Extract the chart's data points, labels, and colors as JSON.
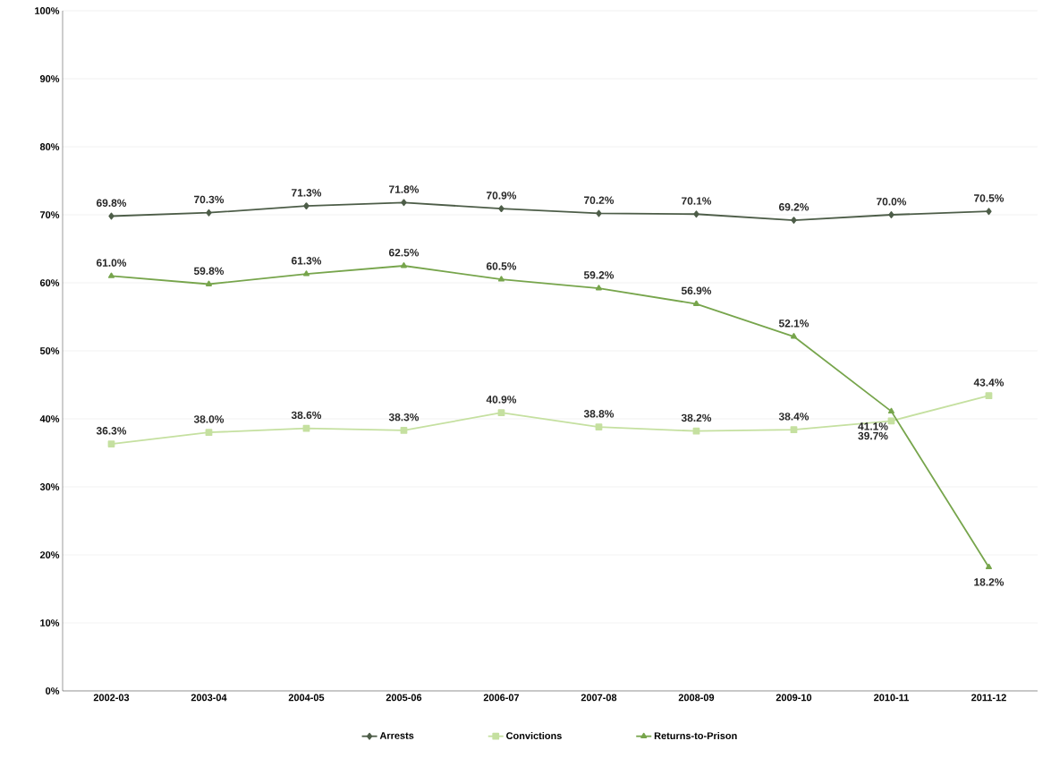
{
  "chart_data": {
    "type": "line",
    "categories": [
      "2002-03",
      "2003-04",
      "2004-05",
      "2005-06",
      "2006-07",
      "2007-08",
      "2008-09",
      "2009-10",
      "2010-11",
      "2011-12"
    ],
    "series": [
      {
        "name": "Arrests",
        "color": "#4d5d48",
        "marker": "diamond",
        "values": [
          69.8,
          70.3,
          71.3,
          71.8,
          70.9,
          70.2,
          70.1,
          69.2,
          70.0,
          70.5
        ],
        "value_labels": [
          "69.8%",
          "70.3%",
          "71.3%",
          "71.8%",
          "70.9%",
          "70.2%",
          "70.1%",
          "69.2%",
          "70.0%",
          "70.5%"
        ]
      },
      {
        "name": "Convictions",
        "color": "#c5e0a0",
        "marker": "square",
        "values": [
          36.3,
          38.0,
          38.6,
          38.3,
          40.9,
          38.8,
          38.2,
          38.4,
          39.7,
          43.4
        ],
        "value_labels": [
          "36.3%",
          "38.0%",
          "38.6%",
          "38.3%",
          "40.9%",
          "38.8%",
          "38.2%",
          "38.4%",
          "39.7%",
          "43.4%"
        ]
      },
      {
        "name": "Returns-to-Prison",
        "color": "#77a54c",
        "marker": "triangle",
        "values": [
          61.0,
          59.8,
          61.3,
          62.5,
          60.5,
          59.2,
          56.9,
          52.1,
          41.1,
          18.2
        ],
        "value_labels": [
          "61.0%",
          "59.8%",
          "61.3%",
          "62.5%",
          "60.5%",
          "59.2%",
          "56.9%",
          "52.1%",
          "41.1%",
          "18.2%"
        ]
      }
    ],
    "ylim": [
      0,
      100
    ],
    "yticks": [
      {
        "value": 0,
        "label": "0%"
      },
      {
        "value": 10,
        "label": "10%"
      },
      {
        "value": 20,
        "label": "20%"
      },
      {
        "value": 30,
        "label": "30%"
      },
      {
        "value": 40,
        "label": "40%"
      },
      {
        "value": 50,
        "label": "50%"
      },
      {
        "value": 60,
        "label": "60%"
      },
      {
        "value": 70,
        "label": "70%"
      },
      {
        "value": 80,
        "label": "80%"
      },
      {
        "value": 90,
        "label": "90%"
      },
      {
        "value": 100,
        "label": "100%"
      }
    ],
    "grid": "y",
    "legend": "bottom",
    "line_style": "solid"
  }
}
